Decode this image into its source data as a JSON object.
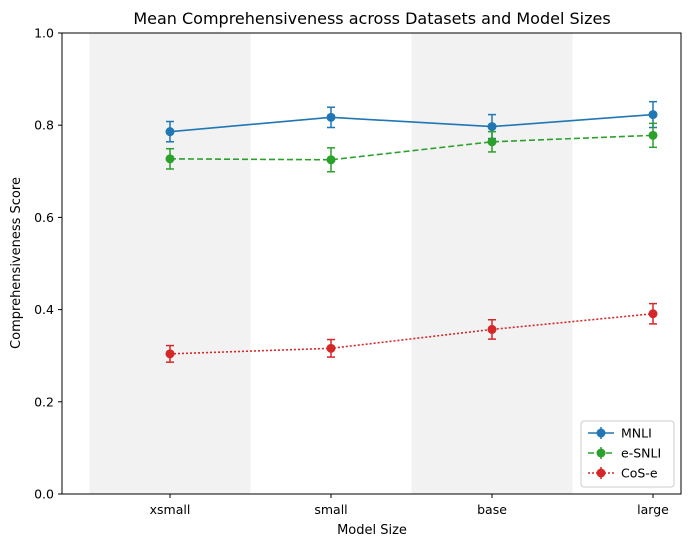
{
  "chart_data": {
    "type": "line",
    "title": "Mean Comprehensiveness across Datasets and Model Sizes",
    "xlabel": "Model Size",
    "ylabel": "Comprehensiveness Score",
    "categories": [
      "xsmall",
      "small",
      "base",
      "large"
    ],
    "ylim": [
      0,
      1.0
    ],
    "yticks": [
      "0.0",
      "0.2",
      "0.4",
      "0.6",
      "0.8",
      "1.0"
    ],
    "shaded_categories": [
      0,
      2
    ],
    "legend_position": "lower-right",
    "grid": false,
    "series": [
      {
        "name": "MNLI",
        "color": "#1f77b4",
        "linestyle": "solid",
        "values": [
          0.786,
          0.817,
          0.797,
          0.823
        ],
        "errors": [
          0.022,
          0.022,
          0.026,
          0.028
        ]
      },
      {
        "name": "e-SNLI",
        "color": "#2ca02c",
        "linestyle": "dashed",
        "values": [
          0.727,
          0.725,
          0.764,
          0.778
        ],
        "errors": [
          0.022,
          0.026,
          0.022,
          0.026
        ]
      },
      {
        "name": "CoS-e",
        "color": "#d62728",
        "linestyle": "dotted",
        "values": [
          0.304,
          0.316,
          0.357,
          0.391
        ],
        "errors": [
          0.018,
          0.019,
          0.021,
          0.022
        ]
      }
    ]
  }
}
